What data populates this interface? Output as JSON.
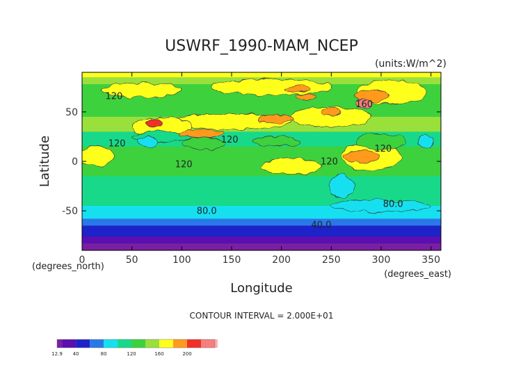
{
  "chart_data": {
    "type": "heatmap",
    "title": "USWRF_1990-MAM_NCEP",
    "units_label": "(units:W/m^2)",
    "xlabel": "Longitude",
    "ylabel": "Latitude",
    "x_unit_label": "(degrees_east)",
    "y_unit_label": "(degrees_north)",
    "xlim": [
      0,
      360
    ],
    "ylim": [
      -90,
      90
    ],
    "x_ticks": [
      0,
      50,
      100,
      150,
      200,
      250,
      300,
      350
    ],
    "y_ticks": [
      -50,
      0,
      50
    ],
    "contour_interval_text": "CONTOUR INTERVAL = 2.000E+01",
    "contour_labels": [
      {
        "text": "120",
        "lon": 32,
        "lat": 63
      },
      {
        "text": "120",
        "lon": 148,
        "lat": 19
      },
      {
        "text": "120",
        "lon": 102,
        "lat": -6
      },
      {
        "text": "120",
        "lon": 248,
        "lat": -3
      },
      {
        "text": "120",
        "lon": 302,
        "lat": 10
      },
      {
        "text": "120",
        "lon": 35,
        "lat": 15
      },
      {
        "text": "160",
        "lon": 283,
        "lat": 55
      },
      {
        "text": "80.0",
        "lon": 125,
        "lat": -53
      },
      {
        "text": "80.0",
        "lon": 312,
        "lat": -46
      },
      {
        "text": "40.0",
        "lon": 240,
        "lat": -67
      }
    ],
    "colorbar": {
      "min_label": "12.9",
      "tick_labels": [
        "40",
        "80",
        "120",
        "160",
        "200"
      ],
      "tick_values": [
        40,
        80,
        120,
        160,
        200
      ],
      "min": 12.9,
      "max": 240
    },
    "levels": [
      {
        "value": 12.9,
        "color": "#7a1fa2"
      },
      {
        "value": 20,
        "color": "#5a0fb0"
      },
      {
        "value": 40,
        "color": "#1d22c9"
      },
      {
        "value": 60,
        "color": "#2a78e8"
      },
      {
        "value": 80,
        "color": "#16e0f0"
      },
      {
        "value": 100,
        "color": "#18d98a"
      },
      {
        "value": 120,
        "color": "#3ed13e"
      },
      {
        "value": 140,
        "color": "#9ae03a"
      },
      {
        "value": 160,
        "color": "#ffff1e"
      },
      {
        "value": 180,
        "color": "#ff9a1e"
      },
      {
        "value": 200,
        "color": "#f03028"
      },
      {
        "value": 220,
        "color": "#f57f7f"
      },
      {
        "value": 240,
        "color": "#ffb0b0"
      }
    ],
    "bands": [
      {
        "lat_from": 90,
        "lat_to": 85,
        "value": 165
      },
      {
        "lat_from": 85,
        "lat_to": 78,
        "value": 150
      },
      {
        "lat_from": 78,
        "lat_to": 60,
        "value": 135
      },
      {
        "lat_from": 60,
        "lat_to": 45,
        "value": 125
      },
      {
        "lat_from": 45,
        "lat_to": 30,
        "value": 140
      },
      {
        "lat_from": 30,
        "lat_to": 15,
        "value": 118
      },
      {
        "lat_from": 15,
        "lat_to": -15,
        "value": 125
      },
      {
        "lat_from": -15,
        "lat_to": -30,
        "value": 108
      },
      {
        "lat_from": -30,
        "lat_to": -45,
        "value": 112
      },
      {
        "lat_from": -45,
        "lat_to": -52,
        "value": 95
      },
      {
        "lat_from": -52,
        "lat_to": -58,
        "value": 85
      },
      {
        "lat_from": -58,
        "lat_to": -65,
        "value": 65
      },
      {
        "lat_from": -65,
        "lat_to": -70,
        "value": 45
      },
      {
        "lat_from": -70,
        "lat_to": -76,
        "value": 50
      },
      {
        "lat_from": -76,
        "lat_to": -83,
        "value": 38
      },
      {
        "lat_from": -83,
        "lat_to": -90,
        "value": 15
      }
    ],
    "features": [
      {
        "lon": 60,
        "lat": 72,
        "rlon": 40,
        "rlat": 7,
        "value": 165
      },
      {
        "lon": 190,
        "lat": 75,
        "rlon": 60,
        "rlat": 8,
        "value": 170
      },
      {
        "lon": 310,
        "lat": 70,
        "rlon": 35,
        "rlat": 12,
        "value": 165
      },
      {
        "lon": 150,
        "lat": 40,
        "rlon": 60,
        "rlat": 8,
        "value": 168
      },
      {
        "lon": 250,
        "lat": 45,
        "rlon": 40,
        "rlat": 10,
        "value": 162
      },
      {
        "lon": 80,
        "lat": 35,
        "rlon": 30,
        "rlat": 10,
        "value": 162
      },
      {
        "lon": 290,
        "lat": 5,
        "rlon": 30,
        "rlat": 14,
        "value": 162
      },
      {
        "lon": 15,
        "lat": 5,
        "rlon": 18,
        "rlat": 10,
        "value": 160
      },
      {
        "lon": 210,
        "lat": -5,
        "rlon": 30,
        "rlat": 8,
        "value": 160
      },
      {
        "lon": 300,
        "lat": -45,
        "rlon": 50,
        "rlat": 6,
        "value": 88
      },
      {
        "lon": 80,
        "lat": 25,
        "rlon": 30,
        "rlat": 5,
        "value": 100
      },
      {
        "lon": 195,
        "lat": 20,
        "rlon": 25,
        "rlat": 5,
        "value": 125
      },
      {
        "lon": 300,
        "lat": 20,
        "rlon": 25,
        "rlat": 8,
        "value": 125
      },
      {
        "lon": 122,
        "lat": 18,
        "rlon": 22,
        "rlat": 6,
        "value": 125
      },
      {
        "lon": 65,
        "lat": 20,
        "rlon": 10,
        "rlat": 5,
        "value": 90
      },
      {
        "lon": 345,
        "lat": 20,
        "rlon": 8,
        "rlat": 6,
        "value": 90
      },
      {
        "lon": 260,
        "lat": -25,
        "rlon": 12,
        "rlat": 12,
        "value": 95
      },
      {
        "lon": 73,
        "lat": 39,
        "rlon": 8,
        "rlat": 5,
        "value": 205
      },
      {
        "lon": 120,
        "lat": 28,
        "rlon": 22,
        "rlat": 4,
        "value": 190
      },
      {
        "lon": 195,
        "lat": 43,
        "rlon": 18,
        "rlat": 4,
        "value": 185
      },
      {
        "lon": 215,
        "lat": 73,
        "rlon": 12,
        "rlat": 3,
        "value": 185
      },
      {
        "lon": 250,
        "lat": 50,
        "rlon": 10,
        "rlat": 4,
        "value": 185
      },
      {
        "lon": 280,
        "lat": 5,
        "rlon": 18,
        "rlat": 6,
        "value": 190
      },
      {
        "lon": 290,
        "lat": 66,
        "rlon": 18,
        "rlat": 6,
        "value": 195
      },
      {
        "lon": 283,
        "lat": 58,
        "rlon": 8,
        "rlat": 4,
        "value": 230
      },
      {
        "lon": 225,
        "lat": 65,
        "rlon": 10,
        "rlat": 3,
        "value": 195
      }
    ]
  }
}
